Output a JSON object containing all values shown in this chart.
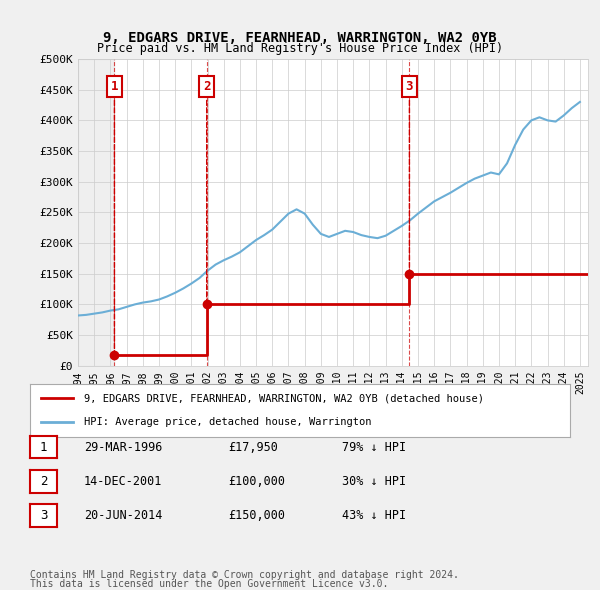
{
  "title": "9, EDGARS DRIVE, FEARNHEAD, WARRINGTON, WA2 0YB",
  "subtitle": "Price paid vs. HM Land Registry's House Price Index (HPI)",
  "ylabel": "",
  "ylim": [
    0,
    500000
  ],
  "yticks": [
    0,
    50000,
    100000,
    150000,
    200000,
    250000,
    300000,
    350000,
    400000,
    450000,
    500000
  ],
  "ytick_labels": [
    "£0",
    "£50K",
    "£100K",
    "£150K",
    "£200K",
    "£250K",
    "£300K",
    "£350K",
    "£400K",
    "£450K",
    "£500K"
  ],
  "xlim_start": 1994.0,
  "xlim_end": 2025.5,
  "xticks": [
    1994,
    1995,
    1996,
    1997,
    1998,
    1999,
    2000,
    2001,
    2002,
    2003,
    2004,
    2005,
    2006,
    2007,
    2008,
    2009,
    2010,
    2011,
    2012,
    2013,
    2014,
    2015,
    2016,
    2017,
    2018,
    2019,
    2020,
    2021,
    2022,
    2023,
    2024,
    2025
  ],
  "hpi_color": "#6baed6",
  "sale_color": "#cc0000",
  "background_color": "#f0f0f0",
  "plot_bg_color": "#ffffff",
  "grid_color": "#cccccc",
  "sale_points": [
    {
      "year": 1996.25,
      "price": 17950,
      "label": "1"
    },
    {
      "year": 2001.95,
      "price": 100000,
      "label": "2"
    },
    {
      "year": 2014.47,
      "price": 150000,
      "label": "3"
    }
  ],
  "hpi_years": [
    1994,
    1994.5,
    1995,
    1995.5,
    1996,
    1996.5,
    1997,
    1997.5,
    1998,
    1998.5,
    1999,
    1999.5,
    2000,
    2000.5,
    2001,
    2001.5,
    2002,
    2002.5,
    2003,
    2003.5,
    2004,
    2004.5,
    2005,
    2005.5,
    2006,
    2006.5,
    2007,
    2007.5,
    2008,
    2008.5,
    2009,
    2009.5,
    2010,
    2010.5,
    2011,
    2011.5,
    2012,
    2012.5,
    2013,
    2013.5,
    2014,
    2014.5,
    2015,
    2015.5,
    2016,
    2016.5,
    2017,
    2017.5,
    2018,
    2018.5,
    2019,
    2019.5,
    2020,
    2020.5,
    2021,
    2021.5,
    2022,
    2022.5,
    2023,
    2023.5,
    2024,
    2024.5,
    2025
  ],
  "hpi_values": [
    82000,
    83000,
    85000,
    87000,
    90000,
    92000,
    96000,
    100000,
    103000,
    105000,
    108000,
    113000,
    119000,
    126000,
    134000,
    143000,
    155000,
    165000,
    172000,
    178000,
    185000,
    195000,
    205000,
    213000,
    222000,
    235000,
    248000,
    255000,
    248000,
    230000,
    215000,
    210000,
    215000,
    220000,
    218000,
    213000,
    210000,
    208000,
    212000,
    220000,
    228000,
    237000,
    248000,
    258000,
    268000,
    275000,
    282000,
    290000,
    298000,
    305000,
    310000,
    315000,
    312000,
    330000,
    360000,
    385000,
    400000,
    405000,
    400000,
    398000,
    408000,
    420000,
    430000
  ],
  "legend_sale_label": "9, EDGARS DRIVE, FEARNHEAD, WARRINGTON, WA2 0YB (detached house)",
  "legend_hpi_label": "HPI: Average price, detached house, Warrington",
  "table_rows": [
    {
      "num": "1",
      "date": "29-MAR-1996",
      "price": "£17,950",
      "hpi": "79% ↓ HPI"
    },
    {
      "num": "2",
      "date": "14-DEC-2001",
      "price": "£100,000",
      "hpi": "30% ↓ HPI"
    },
    {
      "num": "3",
      "date": "20-JUN-2014",
      "price": "£150,000",
      "hpi": "43% ↓ HPI"
    }
  ],
  "footnote1": "Contains HM Land Registry data © Crown copyright and database right 2024.",
  "footnote2": "This data is licensed under the Open Government Licence v3.0."
}
